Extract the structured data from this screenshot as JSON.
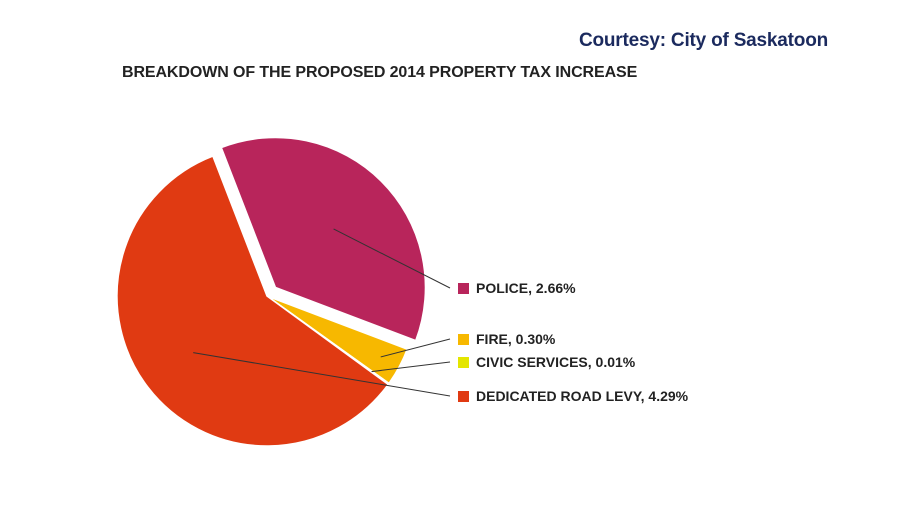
{
  "header": {
    "courtesy": "Courtesy: City of Saskatoon"
  },
  "chart_data": {
    "type": "pie",
    "title": "BREAKDOWN OF THE PROPOSED 2014 PROPERTY TAX INCREASE",
    "unit": "%",
    "slices": [
      {
        "label": "POLICE, 2.66%",
        "category": "POLICE",
        "value": 2.66,
        "color": "#b8255b",
        "exploded": true
      },
      {
        "label": "FIRE, 0.30%",
        "category": "FIRE",
        "value": 0.3,
        "color": "#f7b800",
        "exploded": false
      },
      {
        "label": "CIVIC SERVICES, 0.01%",
        "category": "CIVIC SERVICES",
        "value": 0.01,
        "color": "#e4e600",
        "exploded": false
      },
      {
        "label": "DEDICATED ROAD LEVY, 4.29%",
        "category": "DEDICATED ROAD LEVY",
        "value": 4.29,
        "color": "#e03a12",
        "exploded": false
      }
    ],
    "legend": "right"
  }
}
